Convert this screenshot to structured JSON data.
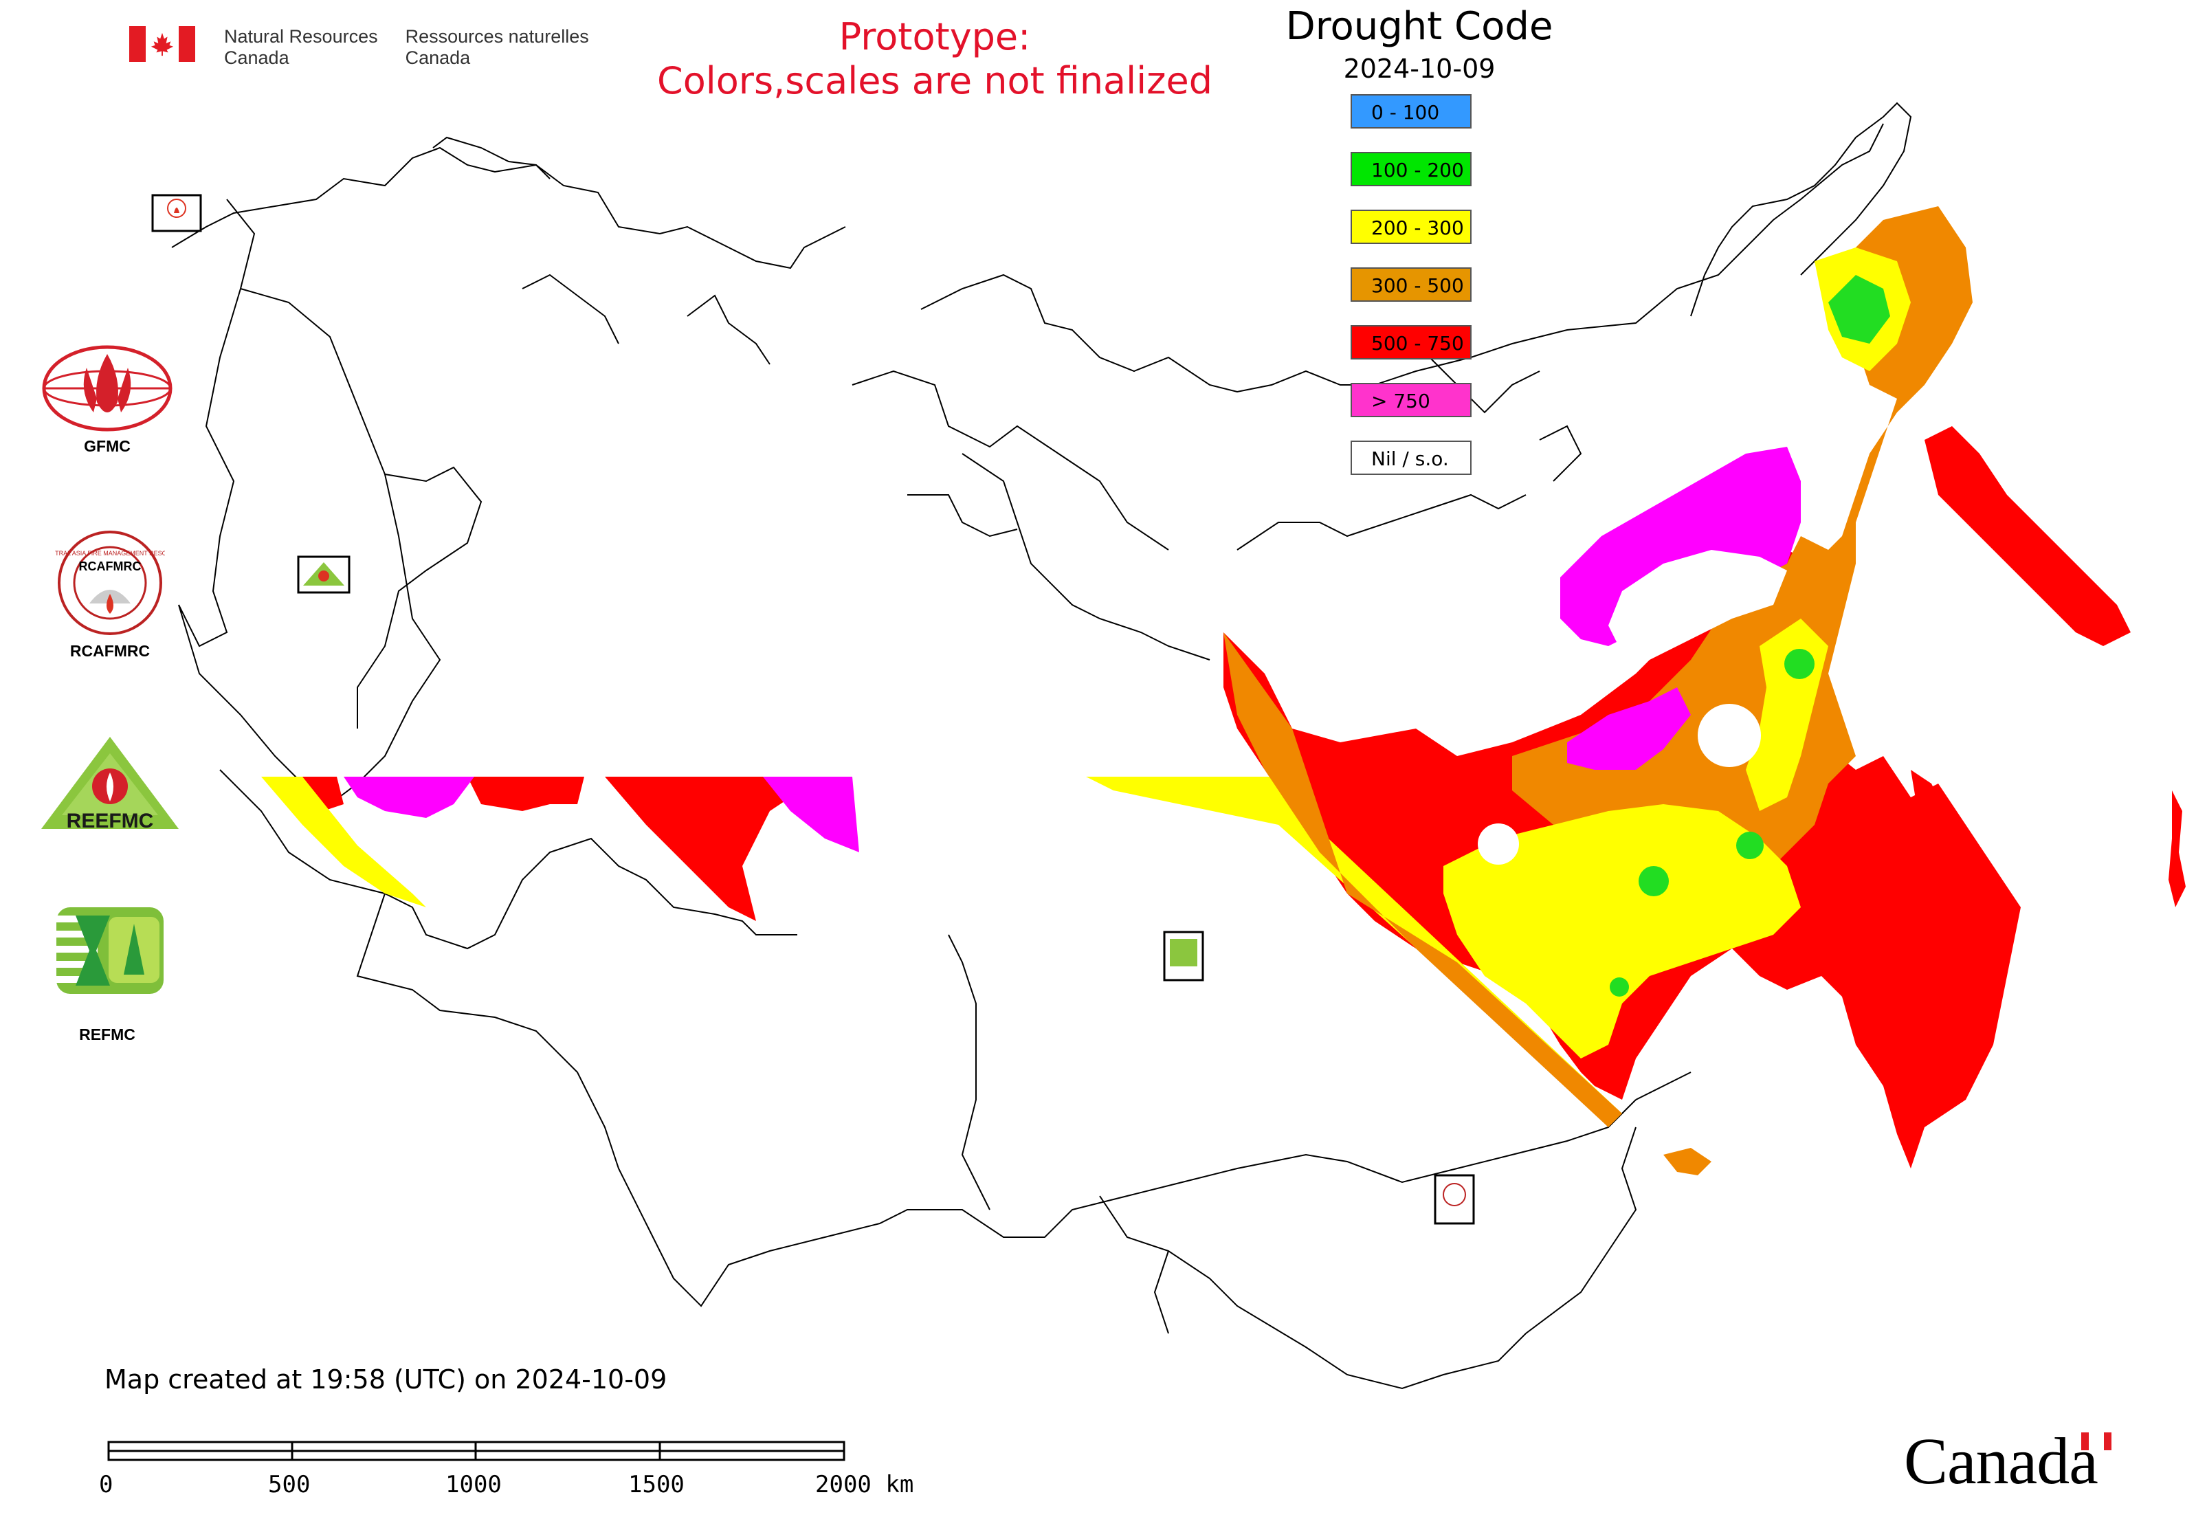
{
  "header": {
    "org_en_line1": "Natural Resources",
    "org_en_line2": "Canada",
    "org_fr_line1": "Ressources naturelles",
    "org_fr_line2": "Canada",
    "notice_line1": "Prototype:",
    "notice_line2": "Colors,scales are not finalized"
  },
  "legend": {
    "title": "Drought Code",
    "date": "2024-10-09",
    "items": [
      {
        "label": "0 - 100",
        "color": "#3399ff"
      },
      {
        "label": "100 - 200",
        "color": "#00e600"
      },
      {
        "label": "200 - 300",
        "color": "#ffff00"
      },
      {
        "label": "300 - 500",
        "color": "#e69500"
      },
      {
        "label": "500 - 750",
        "color": "#ff0000"
      },
      {
        "label": "> 750",
        "color": "#ff33cc"
      },
      {
        "label": "Nil / s.o.",
        "color": "#ffffff"
      }
    ]
  },
  "logos": {
    "gfmc": "GFMC",
    "rcafmrc": "RCAFMRC",
    "reefmc": "REEFMC",
    "refmc": "REFMC",
    "rcafmrc_ring_text": "REGIONAL CENTRAL ASIA FIRE MANAGEMENT RESOURCE CENTER",
    "reefmc_wordmark": "REEFMC"
  },
  "footer": {
    "created": "Map created at 19:58 (UTC) on 2024-10-09",
    "scale_ticks": [
      "0",
      "500",
      "1000",
      "1500",
      "2000 km"
    ],
    "wordmark": "Canada"
  },
  "map": {
    "fill_colors": {
      "red": "#ff0000",
      "orange": "#f08800",
      "yellow": "#ffff00",
      "green": "#22dd22",
      "magenta": "#ff00ff",
      "blue": "#3399ff"
    }
  }
}
